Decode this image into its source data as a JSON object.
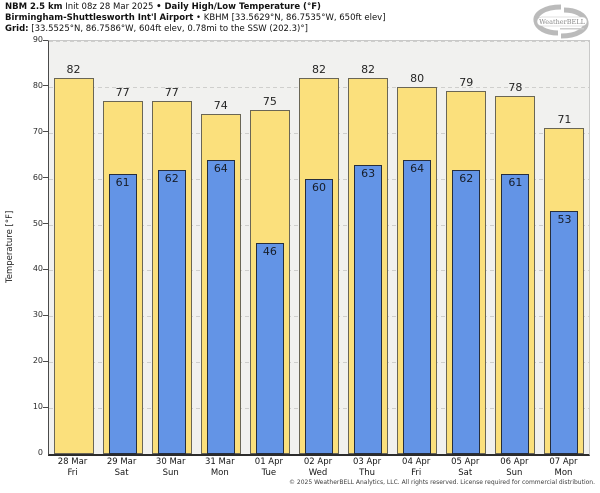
{
  "header": {
    "line1": {
      "model": "NBM 2.5 km",
      "init": " Init 08z 28 Mar 2025 ",
      "product": "• Daily High/Low Temperature (°F)"
    },
    "line2": {
      "station": "Birmingham-Shuttlesworth Int'l Airport",
      "details": " • KBHM [33.5629°N, 86.7535°W, 650ft elev]"
    },
    "line3": {
      "label": "Grid:",
      "details": " [33.5525°N, 86.7586°W, 604ft elev, 0.78mi to the SSW (202.3)°]"
    }
  },
  "logo": {
    "text": "WeatherBELL"
  },
  "axes": {
    "y_label": "Temperature [°F]",
    "y_ticks": [
      0,
      10,
      20,
      30,
      40,
      50,
      60,
      70,
      80,
      90
    ]
  },
  "chart_data": {
    "type": "bar",
    "title": "Daily High/Low Temperature (°F)",
    "xlabel": "",
    "ylabel": "Temperature [°F]",
    "ylim": [
      0,
      90
    ],
    "grid": true,
    "legend": "none",
    "categories": [
      {
        "date": "28 Mar",
        "day": "Fri"
      },
      {
        "date": "29 Mar",
        "day": "Sat"
      },
      {
        "date": "30 Mar",
        "day": "Sun"
      },
      {
        "date": "31 Mar",
        "day": "Mon"
      },
      {
        "date": "01 Apr",
        "day": "Tue"
      },
      {
        "date": "02 Apr",
        "day": "Wed"
      },
      {
        "date": "03 Apr",
        "day": "Thu"
      },
      {
        "date": "04 Apr",
        "day": "Fri"
      },
      {
        "date": "05 Apr",
        "day": "Sat"
      },
      {
        "date": "06 Apr",
        "day": "Sun"
      },
      {
        "date": "07 Apr",
        "day": "Mon"
      }
    ],
    "series": [
      {
        "name": "High",
        "color": "#fbe07c",
        "edge_color": "#6a6655",
        "values": [
          82,
          77,
          77,
          74,
          75,
          82,
          82,
          80,
          79,
          78,
          71
        ]
      },
      {
        "name": "Low",
        "color": "#6394e6",
        "edge_color": "#262e3d",
        "values": [
          null,
          61,
          62,
          64,
          46,
          60,
          63,
          64,
          62,
          61,
          53
        ]
      }
    ]
  },
  "footer": {
    "copyright": "© 2025 WeatherBELL Analytics, LLC. All rights reserved. License required for commercial distribution."
  }
}
